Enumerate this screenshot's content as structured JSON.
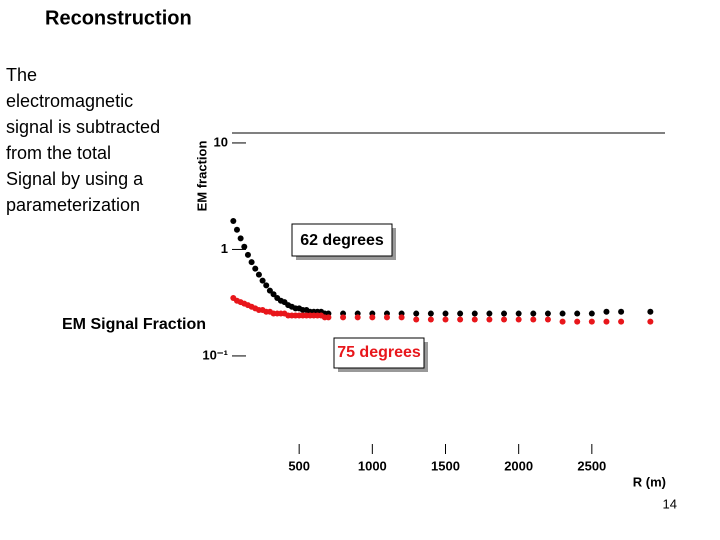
{
  "slide": {
    "title": "Reconstruction",
    "body": [
      "The",
      "electromagnetic",
      "signal is subtracted",
      "from  the total",
      "Signal by using a",
      "parameterization"
    ],
    "caption": "EM Signal Fraction",
    "page_number": "14"
  },
  "chart_data": {
    "type": "scatter",
    "y_label": "EM fraction",
    "x_label": "R (m)",
    "log_y": true,
    "xlim": [
      0,
      3000
    ],
    "ylim": [
      0.012,
      12.4
    ],
    "xticks": [
      500,
      1000,
      1500,
      2000,
      2500
    ],
    "yticks": [
      10,
      1,
      {
        "value": 0.1,
        "label": "10⁻¹"
      }
    ],
    "x": [
      50,
      75,
      100,
      125,
      150,
      175,
      200,
      225,
      250,
      275,
      300,
      325,
      350,
      375,
      400,
      425,
      450,
      475,
      500,
      525,
      550,
      575,
      600,
      625,
      650,
      675,
      700,
      800,
      900,
      1000,
      1100,
      1200,
      1300,
      1400,
      1500,
      1600,
      1700,
      1800,
      1900,
      2000,
      2100,
      2200,
      2300,
      2400,
      2500,
      2600,
      2700,
      2900
    ],
    "series": [
      {
        "name": "62 degrees",
        "color": "#000000",
        "values": [
          1.85,
          1.53,
          1.27,
          1.06,
          0.89,
          0.76,
          0.66,
          0.58,
          0.51,
          0.46,
          0.41,
          0.38,
          0.35,
          0.33,
          0.32,
          0.3,
          0.29,
          0.28,
          0.28,
          0.27,
          0.27,
          0.26,
          0.26,
          0.26,
          0.26,
          0.25,
          0.25,
          0.25,
          0.25,
          0.25,
          0.25,
          0.25,
          0.25,
          0.25,
          0.25,
          0.25,
          0.25,
          0.25,
          0.25,
          0.25,
          0.25,
          0.25,
          0.25,
          0.25,
          0.25,
          0.26,
          0.26,
          0.26
        ]
      },
      {
        "name": "75 degrees",
        "color": "#e8161b",
        "values": [
          0.35,
          0.33,
          0.32,
          0.31,
          0.3,
          0.29,
          0.28,
          0.27,
          0.27,
          0.26,
          0.26,
          0.25,
          0.25,
          0.25,
          0.25,
          0.24,
          0.24,
          0.24,
          0.24,
          0.24,
          0.24,
          0.24,
          0.24,
          0.24,
          0.24,
          0.23,
          0.23,
          0.23,
          0.23,
          0.23,
          0.23,
          0.23,
          0.22,
          0.22,
          0.22,
          0.22,
          0.22,
          0.22,
          0.22,
          0.22,
          0.22,
          0.22,
          0.21,
          0.21,
          0.21,
          0.21,
          0.21,
          0.21
        ]
      }
    ]
  }
}
